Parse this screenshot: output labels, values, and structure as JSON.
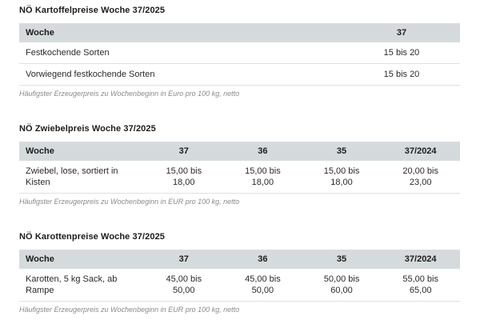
{
  "page": {
    "background_color": "#ffffff",
    "header_band_color": "#d5dbdd",
    "row_border_color": "#e0e0e0",
    "footnote_color": "#8a8a8a"
  },
  "tables": [
    {
      "title": "NÖ Kartoffelpreise Woche 37/2025",
      "columns": [
        "Woche",
        "37"
      ],
      "rows": [
        [
          "Festkochende Sorten",
          "15 bis 20"
        ],
        [
          "Vorwiegend festkochende Sorten",
          "15 bis 20"
        ]
      ],
      "footnote": "Häufigster Erzeugerpreis zu Wochenbeginn in Euro pro 100 kg, netto"
    },
    {
      "title": "NÖ Zwiebelpreis Woche 37/2025",
      "columns": [
        "Woche",
        "37",
        "36",
        "35",
        "37/2024"
      ],
      "rows": [
        [
          "Zwiebel, lose, sortiert in\nKisten",
          "15,00 bis\n18,00",
          "15,00 bis\n18,00",
          "15,00 bis\n18,00",
          "20,00 bis\n23,00"
        ]
      ],
      "footnote": "Häufigster Erzeugerpreis zu Wochenbeginn in EUR pro 100 kg, netto"
    },
    {
      "title": "NÖ Karottenpreise Woche 37/2025",
      "columns": [
        "Woche",
        "37",
        "36",
        "35",
        "37/2024"
      ],
      "rows": [
        [
          "Karotten, 5 kg Sack, ab\nRampe",
          "45,00 bis\n50,00",
          "45,00 bis\n50,00",
          "50,00 bis\n60,00",
          "55,00 bis\n65,00"
        ]
      ],
      "footnote": "Häufigster Erzeugerpreis zu Wochenbeginn in EUR pro 100 kg, netto"
    }
  ]
}
